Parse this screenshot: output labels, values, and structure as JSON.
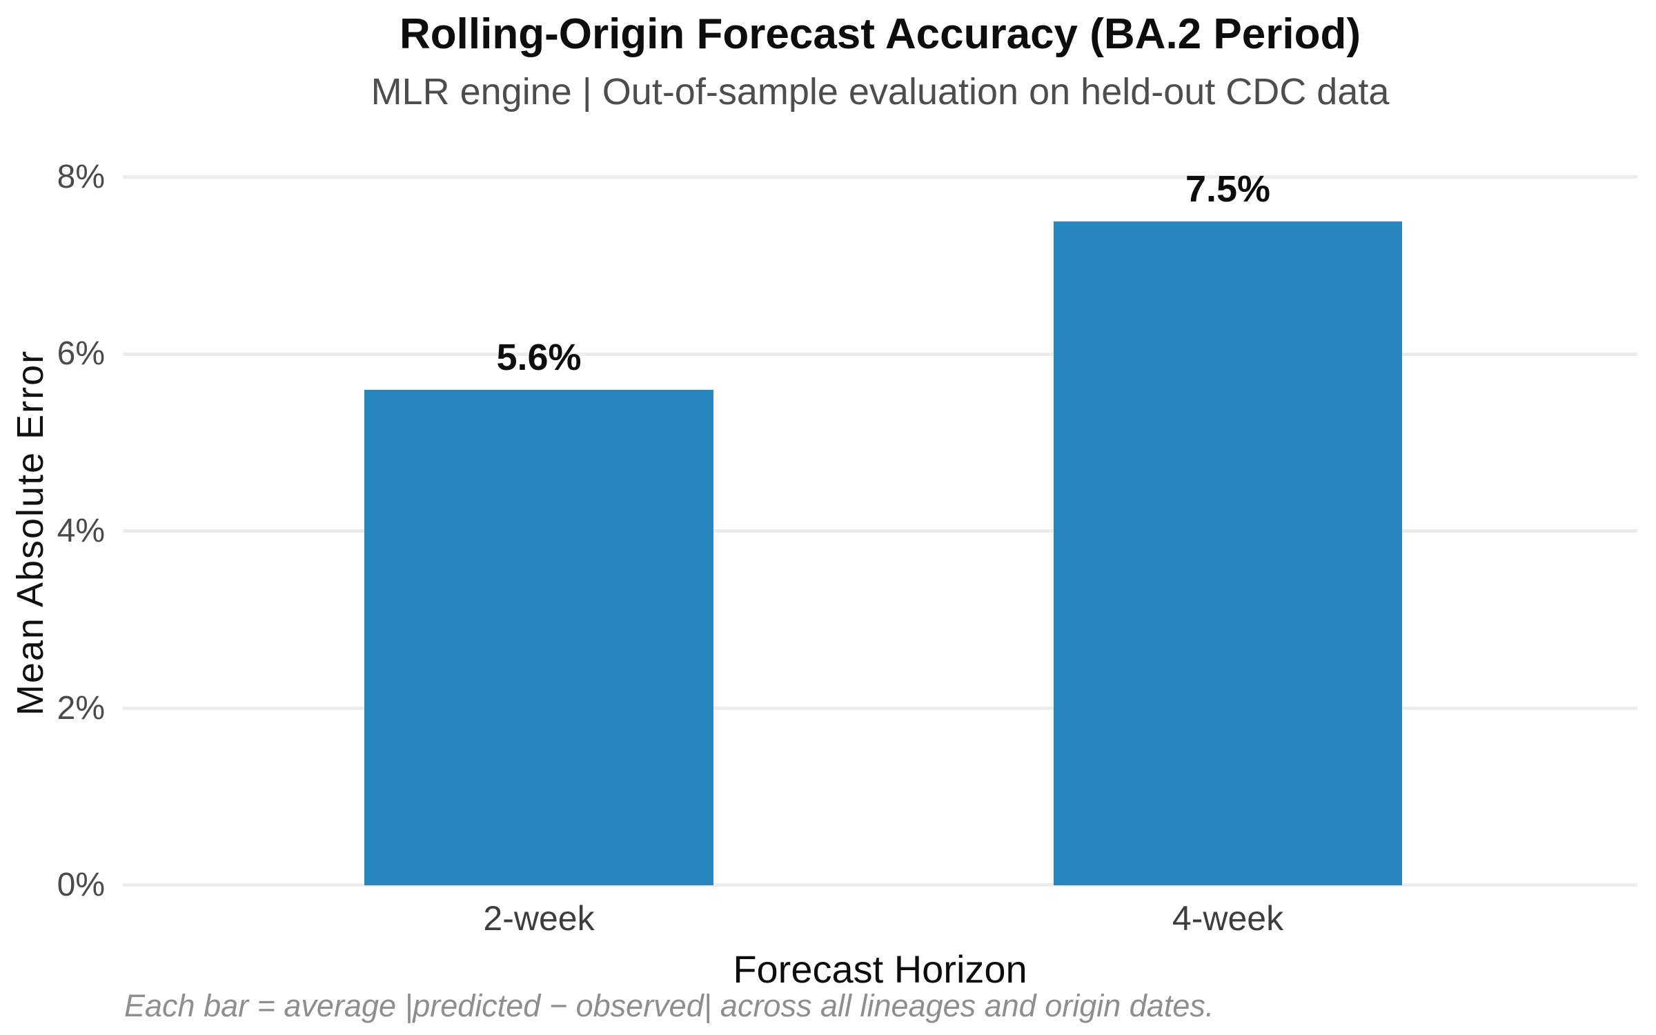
{
  "chart_data": {
    "type": "bar",
    "title": "Rolling-Origin Forecast Accuracy (BA.2 Period)",
    "subtitle": "MLR engine | Out-of-sample evaluation on held-out CDC data",
    "xlabel": "Forecast Horizon",
    "ylabel": "Mean Absolute Error",
    "categories": [
      "2-week",
      "4-week"
    ],
    "values": [
      5.6,
      7.5
    ],
    "value_labels": [
      "5.6%",
      "7.5%"
    ],
    "unit": "percent",
    "ylim": [
      0,
      8
    ],
    "yticks": [
      "0%",
      "2%",
      "4%",
      "6%",
      "8%"
    ],
    "grid": "horizontal",
    "legend": "none",
    "bar_color": "#2787be",
    "footnote": "Each bar = average |predicted − observed| across all lineages and origin dates."
  }
}
